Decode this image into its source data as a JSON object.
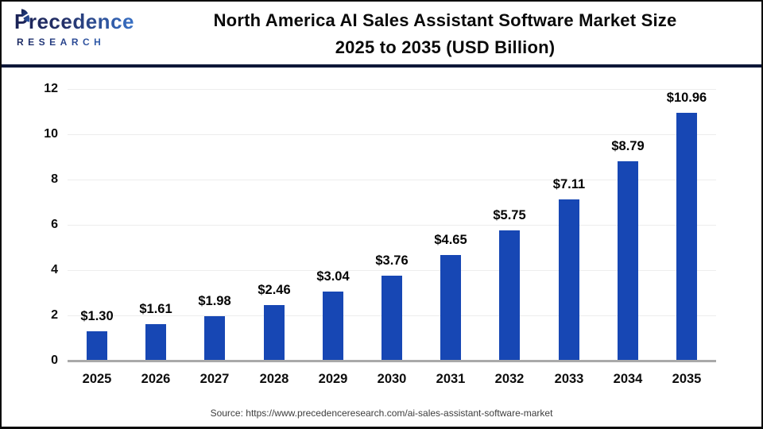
{
  "logo": {
    "brand_line1": "Precedence",
    "brand_line2": "RESEARCH"
  },
  "header": {
    "title_line1": "North America AI Sales Assistant Software Market Size",
    "title_line2": "2025 to 2035 (USD Billion)"
  },
  "chart_data": {
    "type": "bar",
    "title": "North America AI Sales Assistant Software Market Size 2025 to 2035 (USD Billion)",
    "categories": [
      "2025",
      "2026",
      "2027",
      "2028",
      "2029",
      "2030",
      "2031",
      "2032",
      "2033",
      "2034",
      "2035"
    ],
    "values": [
      1.3,
      1.61,
      1.98,
      2.46,
      3.04,
      3.76,
      4.65,
      5.75,
      7.11,
      8.79,
      10.96
    ],
    "value_labels": [
      "$1.30",
      "$1.61",
      "$1.98",
      "$2.46",
      "$3.04",
      "$3.76",
      "$4.65",
      "$5.75",
      "$7.11",
      "$8.79",
      "$10.96"
    ],
    "xlabel": "",
    "ylabel": "",
    "ylim": [
      0,
      12
    ],
    "yticks": [
      0,
      2,
      4,
      6,
      8,
      10,
      12
    ],
    "grid": true,
    "legend": "none",
    "bar_color": "#1747b4"
  },
  "footer": {
    "source": "Source: https://www.precedenceresearch.com/ai-sales-assistant-software-market"
  },
  "colors": {
    "bar": "#1747b4",
    "divider": "#0d1738",
    "gridline": "#ededed",
    "baseline": "#a9a9a9",
    "frame_border": "#0a0a0a",
    "logo_navy": "#1a2256",
    "logo_blue": "#3a77cf"
  }
}
